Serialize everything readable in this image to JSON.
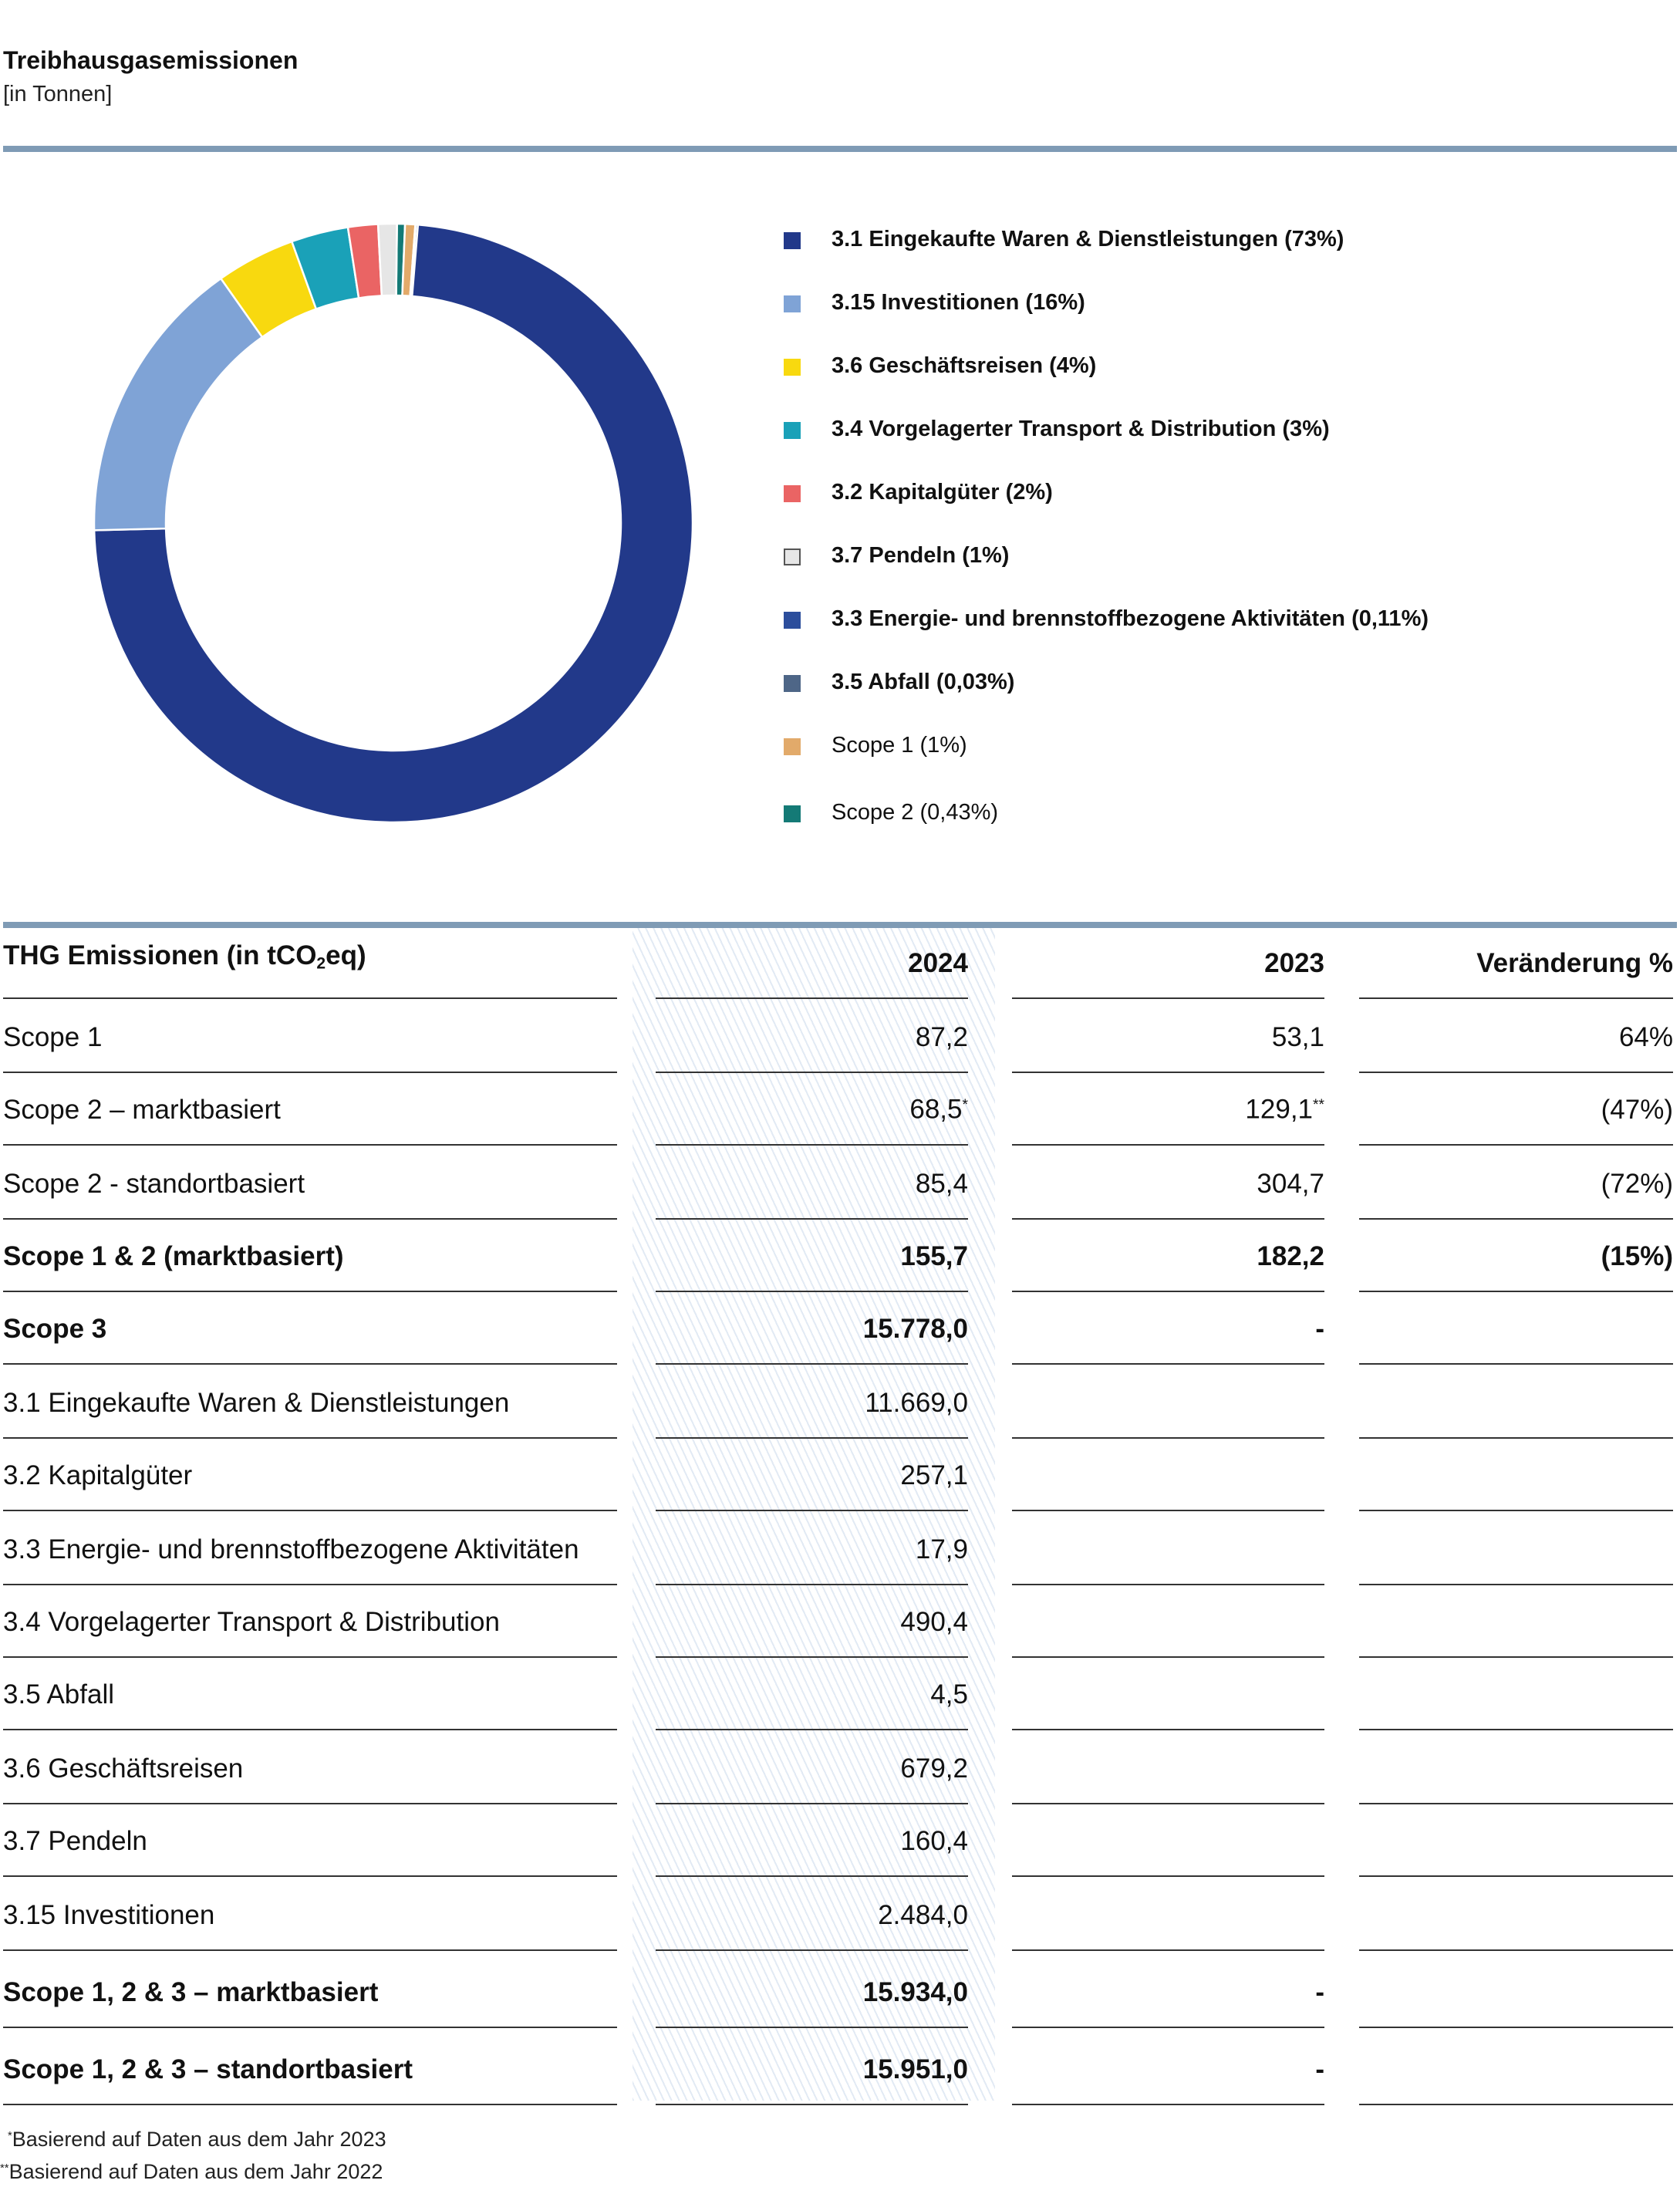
{
  "header": {
    "title": "Treibhausgasemissionen",
    "subtitle": "[in Tonnen]"
  },
  "chart_data": {
    "type": "pie",
    "donut": true,
    "legend_position": "right",
    "slices": [
      {
        "label": "3.1 Eingekaufte Waren & Dienstleistungen (73%)",
        "value": 11669.0,
        "color": "#22398a"
      },
      {
        "label": "3.15 Investitionen (16%)",
        "value": 2484.0,
        "color": "#7fa3d6"
      },
      {
        "label": "3.6 Geschäftsreisen (4%)",
        "value": 679.2,
        "color": "#f8d90f"
      },
      {
        "label": "3.4 Vorgelagerter Transport & Distribution (3%)",
        "value": 490.4,
        "color": "#1aa1b8"
      },
      {
        "label": "3.2 Kapitalgüter (2%)",
        "value": 257.1,
        "color": "#ea6464"
      },
      {
        "label": "3.7 Pendeln (1%)",
        "value": 160.4,
        "color": "#e6e6e6",
        "stroke": "#555555"
      },
      {
        "label": "3.3 Energie- und brennstoffbezogene Aktivitäten (0,11%)",
        "value": 17.9,
        "color": "#2c4e9c"
      },
      {
        "label": "3.5 Abfall (0,03%)",
        "value": 4.5,
        "color": "#4e6687"
      },
      {
        "label": "Scope 1 (1%)",
        "value": 87.2,
        "color": "#e2aa6a"
      },
      {
        "label": "Scope 2 (0,43%)",
        "value": 68.5,
        "color": "#147a76"
      }
    ]
  },
  "table": {
    "headers": {
      "label_pre": "THG Emissionen (in tCO",
      "label_sub": "2",
      "label_post": "eq)",
      "y2024": "2024",
      "y2023": "2023",
      "change": "Veränderung %"
    },
    "rows": [
      {
        "label": "Scope 1",
        "v2024": "87,2",
        "v2024_sup": "",
        "v2023": "53,1",
        "v2023_sup": "",
        "change": "64%",
        "bold": false
      },
      {
        "label": "Scope 2 – marktbasiert",
        "v2024": "68,5",
        "v2024_sup": "*",
        "v2023": "129,1",
        "v2023_sup": "**",
        "change": "(47%)",
        "bold": false
      },
      {
        "label": "Scope 2 - standortbasiert",
        "v2024": "85,4",
        "v2024_sup": "",
        "v2023": "304,7",
        "v2023_sup": "",
        "change": "(72%)",
        "bold": false
      },
      {
        "label": "Scope 1 & 2 (marktbasiert)",
        "v2024": "155,7",
        "v2024_sup": "",
        "v2023": "182,2",
        "v2023_sup": "",
        "change": "(15%)",
        "bold": true
      },
      {
        "label": "Scope 3",
        "v2024": "15.778,0",
        "v2024_sup": "",
        "v2023": "-",
        "v2023_sup": "",
        "change": "",
        "bold": true
      },
      {
        "label": "3.1 Eingekaufte Waren & Dienstleistungen",
        "v2024": "11.669,0",
        "v2024_sup": "",
        "v2023": "",
        "v2023_sup": "",
        "change": "",
        "bold": false
      },
      {
        "label": "3.2 Kapitalgüter",
        "v2024": "257,1",
        "v2024_sup": "",
        "v2023": "",
        "v2023_sup": "",
        "change": "",
        "bold": false
      },
      {
        "label": "3.3 Energie- und brennstoffbezogene Aktivitäten",
        "v2024": "17,9",
        "v2024_sup": "",
        "v2023": "",
        "v2023_sup": "",
        "change": "",
        "bold": false
      },
      {
        "label": "3.4 Vorgelagerter Transport & Distribution",
        "v2024": "490,4",
        "v2024_sup": "",
        "v2023": "",
        "v2023_sup": "",
        "change": "",
        "bold": false
      },
      {
        "label": "3.5 Abfall",
        "v2024": "4,5",
        "v2024_sup": "",
        "v2023": "",
        "v2023_sup": "",
        "change": "",
        "bold": false
      },
      {
        "label": "3.6 Geschäftsreisen",
        "v2024": "679,2",
        "v2024_sup": "",
        "v2023": "",
        "v2023_sup": "",
        "change": "",
        "bold": false
      },
      {
        "label": "3.7 Pendeln",
        "v2024": "160,4",
        "v2024_sup": "",
        "v2023": "",
        "v2023_sup": "",
        "change": "",
        "bold": false
      },
      {
        "label": "3.15 Investitionen",
        "v2024": "2.484,0",
        "v2024_sup": "",
        "v2023": "",
        "v2023_sup": "",
        "change": "",
        "bold": false
      },
      {
        "label": "Scope 1, 2 & 3 – marktbasiert",
        "v2024": "15.934,0",
        "v2024_sup": "",
        "v2023": "-",
        "v2023_sup": "",
        "change": "",
        "bold": true
      },
      {
        "label": "Scope 1, 2 & 3 – standortbasiert",
        "v2024": "15.951,0",
        "v2024_sup": "",
        "v2023": "-",
        "v2023_sup": "",
        "change": "",
        "bold": true
      }
    ]
  },
  "footnotes": [
    {
      "marker": "*",
      "text": "Basierend auf Daten aus dem Jahr 2023"
    },
    {
      "marker": "**",
      "text": "Basierend auf Daten aus dem Jahr 2022"
    }
  ]
}
